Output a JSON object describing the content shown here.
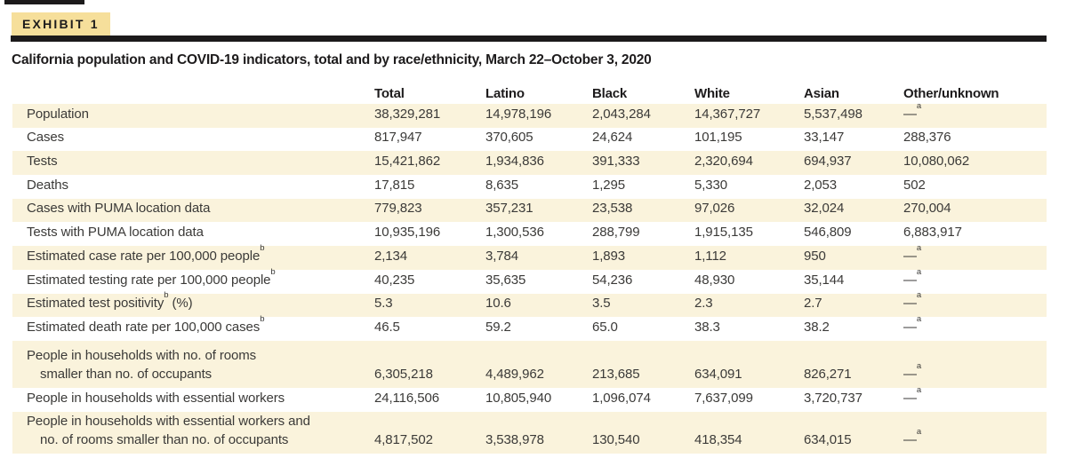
{
  "exhibit": {
    "badge": "EXHIBIT 1",
    "title": "California population and COVID-19 indicators, total and by race/ethnicity, March 22–October 3, 2020"
  },
  "colors": {
    "badge_background": "#f6df9b",
    "row_shading": "#faf3dc",
    "rule_black": "#1c1a1b",
    "text_dark": "#1d1b1c",
    "text_body": "#3b3a38"
  },
  "table": {
    "columns": [
      "",
      "Total",
      "Latino",
      "Black",
      "White",
      "Asian",
      "Other/unknown"
    ],
    "footnote_markers": [
      "a",
      "b"
    ],
    "rows": [
      {
        "label": "Population",
        "shaded": true,
        "values": [
          "38,329,281",
          "14,978,196",
          "2,043,284",
          "14,367,727",
          "5,537,498",
          "—^a"
        ]
      },
      {
        "label": "Cases",
        "shaded": false,
        "values": [
          "817,947",
          "370,605",
          "24,624",
          "101,195",
          "33,147",
          "288,376"
        ]
      },
      {
        "label": "Tests",
        "shaded": true,
        "values": [
          "15,421,862",
          "1,934,836",
          "391,333",
          "2,320,694",
          "694,937",
          "10,080,062"
        ]
      },
      {
        "label": "Deaths",
        "shaded": false,
        "values": [
          "17,815",
          "8,635",
          "1,295",
          "5,330",
          "2,053",
          "502"
        ]
      },
      {
        "label": "Cases with PUMA location data",
        "shaded": true,
        "values": [
          "779,823",
          "357,231",
          "23,538",
          "97,026",
          "32,024",
          "270,004"
        ]
      },
      {
        "label": "Tests with PUMA location data",
        "shaded": false,
        "values": [
          "10,935,196",
          "1,300,536",
          "288,799",
          "1,915,135",
          "546,809",
          "6,883,917"
        ]
      },
      {
        "label": "Estimated case rate per 100,000 people^b",
        "shaded": true,
        "values": [
          "2,134",
          "3,784",
          "1,893",
          "1,112",
          "950",
          "—^a"
        ]
      },
      {
        "label": "Estimated testing rate per 100,000 people^b",
        "shaded": false,
        "values": [
          "40,235",
          "35,635",
          "54,236",
          "48,930",
          "35,144",
          "—^a"
        ]
      },
      {
        "label": "Estimated test positivity^b (%)",
        "shaded": true,
        "values": [
          "5.3",
          "10.6",
          "3.5",
          "2.3",
          "2.7",
          "—^a"
        ]
      },
      {
        "label": "Estimated death rate per 100,000 cases^b",
        "shaded": false,
        "values": [
          "46.5",
          "59.2",
          "65.0",
          "38.3",
          "38.2",
          "—^a"
        ]
      },
      {
        "label": "People in households with no. of rooms\nsmaller than no. of occupants",
        "shaded": true,
        "tall": true,
        "values": [
          "6,305,218",
          "4,489,962",
          "213,685",
          "634,091",
          "826,271",
          "—^a"
        ]
      },
      {
        "label": "People in households with essential workers",
        "shaded": false,
        "values": [
          "24,116,506",
          "10,805,940",
          "1,096,074",
          "7,637,099",
          "3,720,737",
          "—^a"
        ]
      },
      {
        "label": "People in households with essential workers and\nno. of rooms smaller than no. of occupants",
        "shaded": true,
        "tall": true,
        "last": true,
        "values": [
          "4,817,502",
          "3,538,978",
          "130,540",
          "418,354",
          "634,015",
          "—^a"
        ]
      }
    ]
  }
}
